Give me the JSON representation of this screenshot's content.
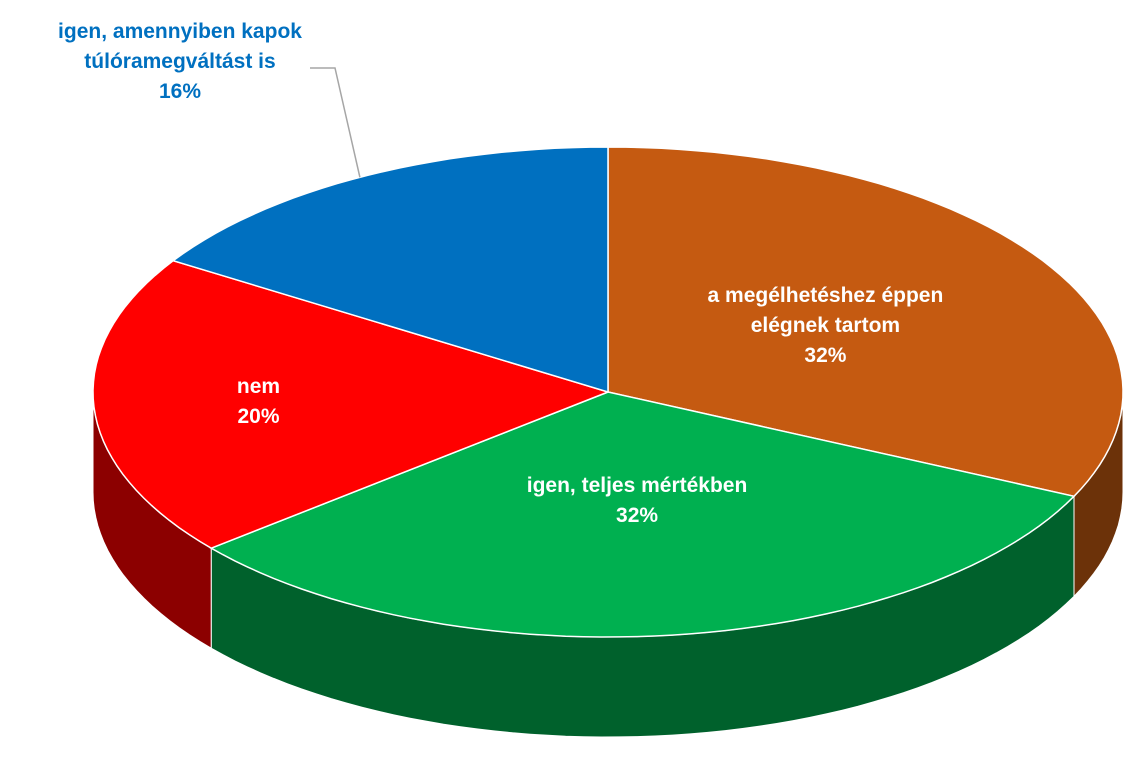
{
  "chart_data": {
    "type": "pie",
    "categories": [
      "a megélhetéshez éppen elégnek tartom",
      "igen, teljes mértékben",
      "nem",
      "igen, amennyiben kapok túlóramegváltást is"
    ],
    "values": [
      32,
      32,
      20,
      16
    ],
    "value_labels": [
      "32%",
      "32%",
      "20%",
      "16%"
    ],
    "colors": [
      "#c55a11",
      "#00b050",
      "#ff0000",
      "#0070c0"
    ],
    "three_d": true
  }
}
